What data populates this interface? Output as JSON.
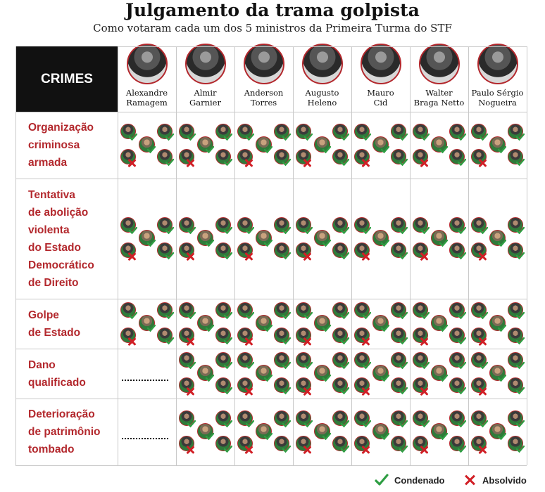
{
  "title": "Julgamento da trama golpista",
  "subtitle": "Como votaram cada um dos 5 ministros da Primeira Turma do STF",
  "header_label": "CRIMES",
  "defendants": [
    {
      "line1": "Alexandre",
      "line2": "Ramagem"
    },
    {
      "line1": "Almir",
      "line2": "Garnier"
    },
    {
      "line1": "Anderson",
      "line2": "Torres"
    },
    {
      "line1": "Augusto",
      "line2": "Heleno"
    },
    {
      "line1": "Mauro",
      "line2": "Cid"
    },
    {
      "line1": "Walter",
      "line2": "Braga Netto"
    },
    {
      "line1": "Paulo Sérgio",
      "line2": "Nogueira"
    }
  ],
  "crimes": [
    {
      "lines": [
        "Organização",
        "criminosa",
        "armada"
      ],
      "votes": [
        "4x1",
        "4x1",
        "4x1",
        "4x1",
        "4x1",
        "4x1",
        "4x1"
      ]
    },
    {
      "lines": [
        "Tentativa",
        "de abolição",
        "violenta",
        "do Estado",
        "Democrático",
        "de Direito"
      ],
      "votes": [
        "4x1",
        "4x1",
        "4x1",
        "4x1",
        "4x1",
        "4x1",
        "4x1"
      ]
    },
    {
      "lines": [
        "Golpe",
        "de Estado"
      ],
      "votes": [
        "4x1",
        "4x1",
        "4x1",
        "4x1",
        "4x1",
        "4x1",
        "4x1"
      ]
    },
    {
      "lines": [
        "Dano",
        "qualificado"
      ],
      "votes": [
        "none",
        "4x1",
        "4x1",
        "4x1",
        "4x1",
        "4x1",
        "4x1"
      ]
    },
    {
      "lines": [
        "Deterioração",
        "de patrimônio",
        "tombado"
      ],
      "votes": [
        "none",
        "4x1",
        "4x1",
        "4x1",
        "4x1",
        "4x1",
        "4x1"
      ]
    }
  ],
  "legend": {
    "condenado": "Condenado",
    "absolvido": "Absolvido"
  },
  "colors": {
    "accent": "#b3282d",
    "check": "#2e9e43",
    "cross": "#d11f26"
  },
  "icons": {
    "condenado": "check-icon",
    "absolvido": "x-icon",
    "judge": "judge-avatar-icon",
    "defendant": "defendant-portrait-icon"
  }
}
